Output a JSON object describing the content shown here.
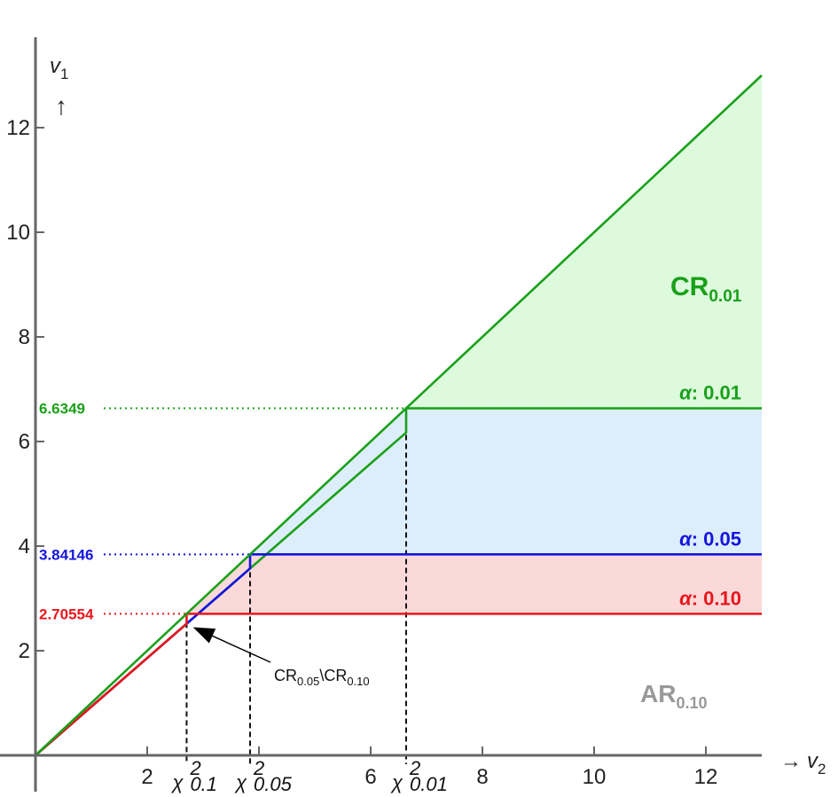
{
  "chart_data": {
    "type": "area",
    "x_axis": {
      "label": "v",
      "sub": "2",
      "arrow": "→",
      "range": [
        0,
        13
      ],
      "ticks": [
        2,
        4,
        6,
        8,
        10,
        12
      ],
      "tick_labels": [
        "2",
        "",
        "6",
        "8",
        "10",
        "12"
      ]
    },
    "y_axis": {
      "label": "v",
      "sub": "1",
      "arrow": "↑",
      "range": [
        0,
        13
      ],
      "ticks": [
        2,
        4,
        6,
        8,
        10,
        12
      ],
      "tick_labels": [
        "2",
        "4",
        "6",
        "8",
        "10",
        "12"
      ]
    },
    "grid": false,
    "x_max": 13,
    "levels": [
      {
        "alpha_label": "α: 0.10",
        "value": 2.70554,
        "value_label": "2.70554",
        "color": "#e8161c",
        "fill": "#fbd9d9",
        "chi_label": "χ",
        "chi_sup": "2",
        "chi_sub": "0.1"
      },
      {
        "alpha_label": "α: 0.05",
        "value": 3.84146,
        "value_label": "3.84146",
        "color": "#1414e0",
        "fill": "#ddeefb",
        "chi_label": "χ",
        "chi_sup": "2",
        "chi_sub": "0.05"
      },
      {
        "alpha_label": "α: 0.01",
        "value": 6.6349,
        "value_label": "6.6349",
        "color": "#1aa01a",
        "fill": "#ddfadd",
        "chi_label": "χ",
        "chi_sup": "2",
        "chi_sub": "0.01"
      }
    ],
    "diagonal": {
      "color": "#1aa01a",
      "from": [
        0,
        0
      ],
      "to": [
        13,
        13
      ]
    },
    "region_labels": {
      "cr_001": {
        "text": "CR",
        "sub": "0.01",
        "color": "#1aa01a"
      },
      "ar_010": {
        "text": "AR",
        "sub": "0.10",
        "color": "#999999"
      }
    },
    "annotation": {
      "text_a": "CR",
      "sub_a": "0.05",
      "sep": "\\",
      "text_b": "CR",
      "sub_b": "0.10",
      "points_to": [
        2.82,
        2.45
      ]
    }
  }
}
